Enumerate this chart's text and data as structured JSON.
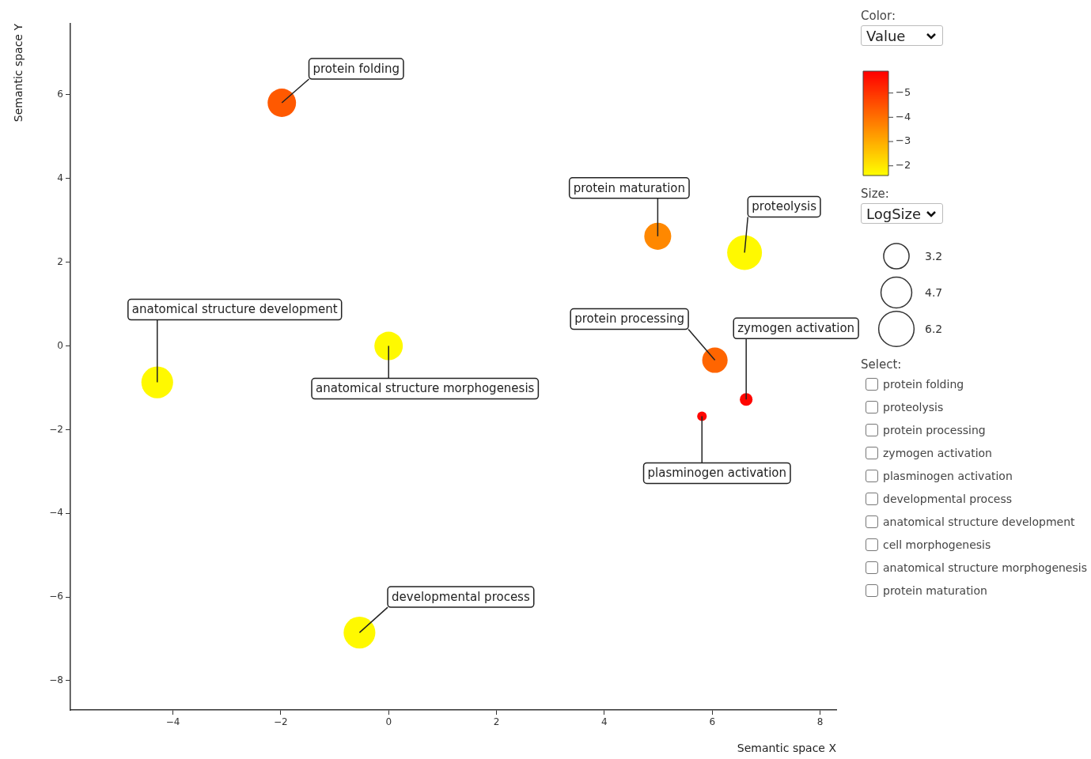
{
  "chart_data": {
    "type": "bubble",
    "xlabel": "Semantic space X",
    "ylabel": "Semantic space Y",
    "x": [
      -1.98,
      4.99,
      6.6,
      6.05,
      6.63,
      5.81,
      -4.29,
      0.0,
      -0.54
    ],
    "values": [
      5.81,
      2.62,
      2.23,
      -0.34,
      -1.28,
      -1.68,
      -0.87,
      0.0,
      -6.85
    ],
    "sizes": [
      4.0,
      3.6,
      6.0,
      3.2,
      0.8,
      0.45,
      5.0,
      4.0,
      5.0
    ],
    "cvalues": [
      -4.4,
      -3.6,
      -1.7,
      -4.2,
      -5.8,
      -5.8,
      -1.7,
      -1.7,
      -1.7
    ],
    "size_legend": [
      3.2,
      4.7,
      6.2
    ],
    "clim": [
      -1.6,
      -5.9
    ],
    "cticks": [
      -2,
      -3,
      -4,
      -5
    ],
    "xlim": [
      -5.9,
      8.3
    ],
    "xticks": [
      -4,
      -2,
      0,
      2,
      4,
      6,
      8
    ],
    "ylim": [
      -8.7,
      7.7
    ],
    "yticks": [
      -8,
      -6,
      -4,
      -2,
      0,
      2,
      4,
      6
    ],
    "grid": false,
    "legend": false,
    "annotations": [
      {
        "text": "protein folding",
        "x": -1.98,
        "y": 5.81
      },
      {
        "text": "protein maturation",
        "x": 4.99,
        "y": 2.62
      },
      {
        "text": "proteolysis",
        "x": 6.6,
        "y": 2.23
      },
      {
        "text": "protein processing",
        "x": 6.05,
        "y": -0.34
      },
      {
        "text": "zymogen activation",
        "x": 6.63,
        "y": -1.28
      },
      {
        "text": "plasminogen activation",
        "x": 5.81,
        "y": -1.68
      },
      {
        "text": "anatomical structure development",
        "x": -4.29,
        "y": -0.87
      },
      {
        "text": "anatomical structure morphogenesis",
        "x": 0.0,
        "y": 0.0
      },
      {
        "text": "developmental process",
        "x": -0.54,
        "y": -6.85
      },
      "Color:",
      "Value",
      "Size:",
      "LogSize",
      "Select:",
      "protein folding",
      "proteolysis",
      "protein processing",
      "zymogen activation",
      "plasminogen activation",
      "developmental process",
      "anatomical structure development",
      "cell morphogenesis",
      "anatomical structure morphogenesis",
      "protein maturation"
    ]
  }
}
